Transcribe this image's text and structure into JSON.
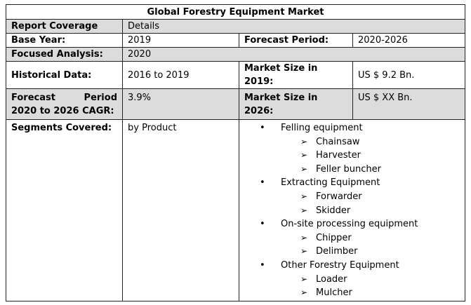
{
  "title": "Global Forestry Equipment Market",
  "header": {
    "col1": "Report Coverage",
    "col2": "Details"
  },
  "rows": {
    "base_year_label": "Base Year:",
    "base_year_value": "2019",
    "forecast_period_label": "Forecast Period:",
    "forecast_period_value": "2020-2026",
    "focused_label": "Focused Analysis:",
    "focused_value": "2020",
    "historical_label": "Historical Data:",
    "historical_value": "2016 to 2019",
    "size_2019_label": "Market Size in 2019:",
    "size_2019_value": "US $ 9.2 Bn.",
    "cagr_label": "Forecast Period 2020 to 2026 CAGR:",
    "cagr_value": "3.9%",
    "size_2026_label": "Market Size in 2026:",
    "size_2026_value": "US $ XX Bn.",
    "segments_label": "Segments Covered:",
    "segments_by": "by Product"
  },
  "segments": [
    {
      "name": "Felling equipment",
      "items": [
        "Chainsaw",
        "Harvester",
        "Feller buncher"
      ]
    },
    {
      "name": "Extracting Equipment",
      "items": [
        "Forwarder",
        "Skidder"
      ]
    },
    {
      "name": "On-site processing equipment",
      "items": [
        "Chipper",
        "Delimber"
      ]
    },
    {
      "name": "Other Forestry Equipment",
      "items": [
        "Loader",
        "Mulcher"
      ]
    }
  ]
}
